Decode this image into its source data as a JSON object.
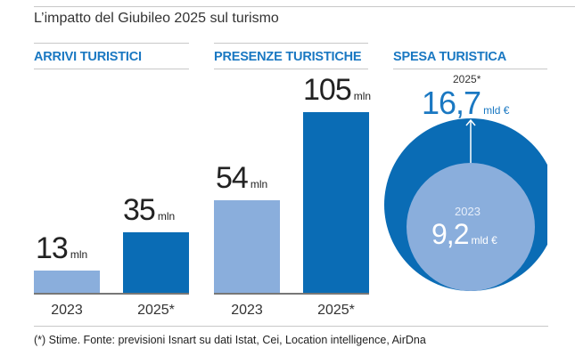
{
  "title": "L’impatto del Giubileo 2025 sul turismo",
  "footnote": "(*) Stime. Fonte: previsioni Isnart su dati Istat, Cei, Location intelligence, AirDna",
  "colors": {
    "y2023": "#8aaedc",
    "y2025": "#0a6cb5",
    "header": "#1a78c2"
  },
  "chart_data": [
    {
      "type": "bar",
      "title": "ARRIVI TURISTICI",
      "categories": [
        "2023",
        "2025*"
      ],
      "values": [
        13,
        35
      ],
      "unit": "mln",
      "labels": [
        "13",
        "35"
      ]
    },
    {
      "type": "bar",
      "title": "PRESENZE TURISTICHE",
      "categories": [
        "2023",
        "2025*"
      ],
      "values": [
        54,
        105
      ],
      "unit": "mln",
      "labels": [
        "54",
        "105"
      ]
    },
    {
      "type": "area-circles",
      "title": "SPESA TURISTICA",
      "categories": [
        "2023",
        "2025*"
      ],
      "values": [
        9.2,
        16.7
      ],
      "unit": "mld €",
      "labels": [
        "9,2",
        "16,7"
      ]
    }
  ]
}
